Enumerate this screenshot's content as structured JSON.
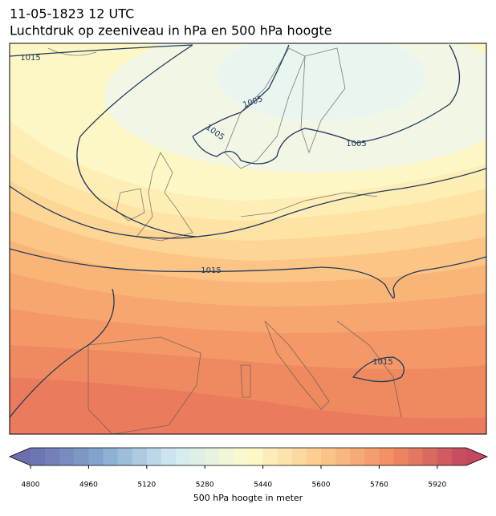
{
  "title": "11-05-1823 12 UTC",
  "subtitle": "Luchtdruk op zeeniveau in hPa en 500 hPa hoogte",
  "map": {
    "isobar_labels": [
      "1015",
      "1005",
      "1005",
      "1005",
      "1015",
      "1015"
    ]
  },
  "colorbar": {
    "label": "500 hPa hoogte in meter",
    "clim": [
      4800,
      6000
    ],
    "level_step": 40,
    "ticks": [
      4800,
      4960,
      5120,
      5280,
      5440,
      5600,
      5760,
      5920
    ],
    "colormap": [
      "#6b6fb0",
      "#86a9cf",
      "#d3eaf2",
      "#fdfbcb",
      "#fcca8b",
      "#f08b60",
      "#c4475f"
    ]
  }
}
